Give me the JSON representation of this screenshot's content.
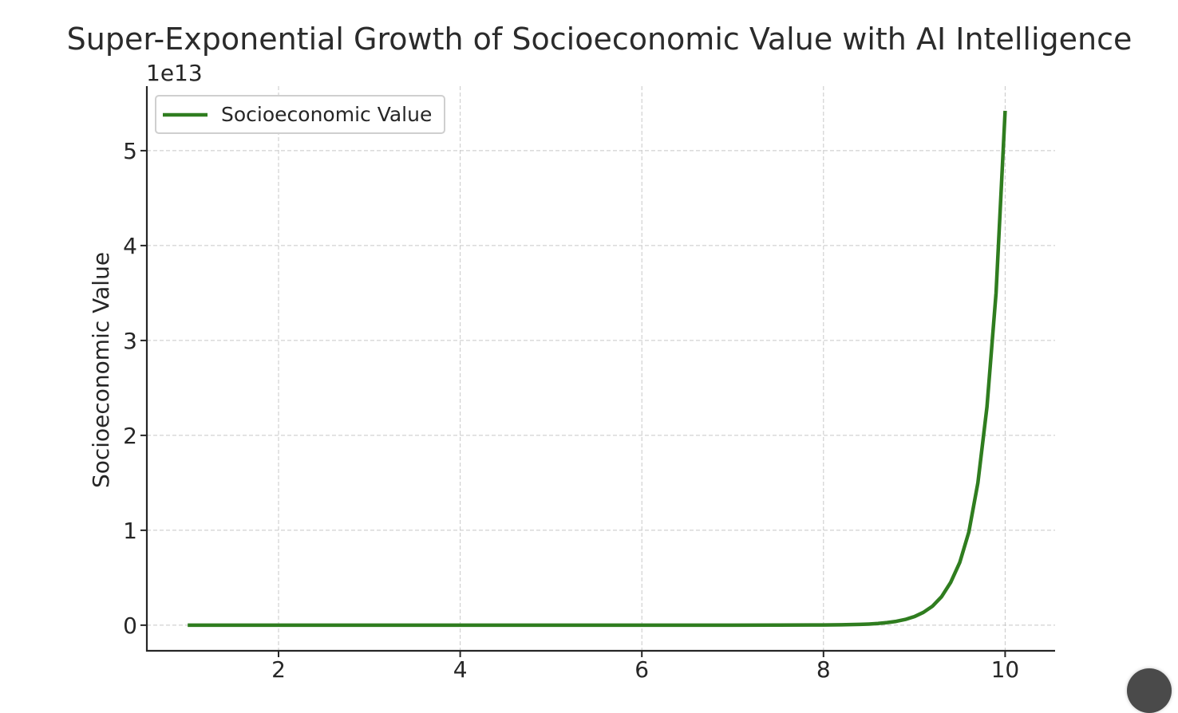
{
  "chart_data": {
    "type": "line",
    "title": "Super-Exponential Growth of Socioeconomic Value with AI Intelligence",
    "xlabel": "",
    "ylabel": "Socioeconomic Value",
    "y_offset_text": "1e13",
    "y_scale_factor": 10000000000000.0,
    "xlim": [
      0.55,
      10.55
    ],
    "ylim": [
      -0.27,
      5.68
    ],
    "x_ticks": [
      2,
      4,
      6,
      8,
      10
    ],
    "x_tick_labels": [
      "2",
      "4",
      "6",
      "8",
      "10"
    ],
    "y_ticks": [
      0,
      1,
      2,
      3,
      4,
      5
    ],
    "y_tick_labels": [
      "0",
      "1",
      "2",
      "3",
      "4",
      "5"
    ],
    "grid": true,
    "legend_position": "upper-left",
    "series": [
      {
        "name": "Socioeconomic Value",
        "color": "#2f7d1f",
        "x": [
          1.0,
          2.0,
          3.0,
          4.0,
          5.0,
          6.0,
          7.0,
          7.5,
          8.0,
          8.2,
          8.4,
          8.5,
          8.6,
          8.7,
          8.8,
          8.9,
          9.0,
          9.1,
          9.2,
          9.3,
          9.4,
          9.5,
          9.6,
          9.7,
          9.8,
          9.9,
          10.0
        ],
        "y": [
          0,
          0,
          0,
          0,
          0,
          0,
          0,
          0.0005,
          0.002,
          0.004,
          0.008,
          0.012,
          0.018,
          0.027,
          0.04,
          0.06,
          0.09,
          0.135,
          0.2,
          0.3,
          0.45,
          0.66,
          0.98,
          1.5,
          2.3,
          3.5,
          5.42
        ]
      }
    ]
  },
  "ui": {
    "corner_button_icon": "circle-action-icon"
  }
}
